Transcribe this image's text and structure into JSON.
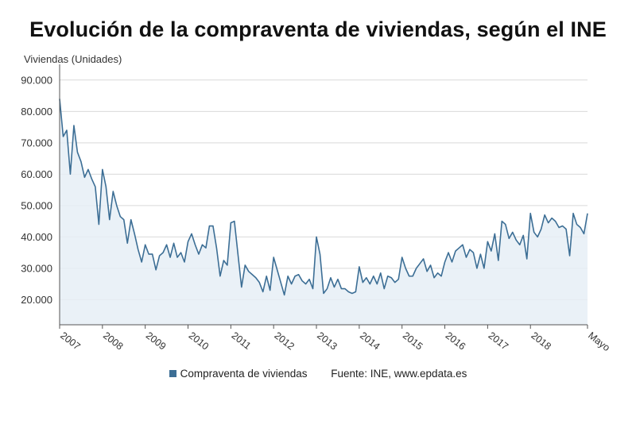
{
  "chart_data": {
    "type": "area",
    "title": "Evolución de la compraventa de viviendas, según el INE",
    "ylabel": "Viviendas (Unidades)",
    "xlabel": "",
    "ylim": [
      12000,
      94000
    ],
    "yticks": [
      20000,
      30000,
      40000,
      50000,
      60000,
      70000,
      80000,
      90000
    ],
    "ytick_labels": [
      "20.000",
      "30.000",
      "40.000",
      "50.000",
      "60.000",
      "70.000",
      "80.000",
      "90.000"
    ],
    "xtick_labels": [
      "2007",
      "2008",
      "2009",
      "2010",
      "2011",
      "2012",
      "2013",
      "2014",
      "2015",
      "2016",
      "2017",
      "2018",
      "Mayo"
    ],
    "x_start": "2007-01",
    "x_end": "2019-05",
    "grid": true,
    "legend_position": "bottom",
    "series": [
      {
        "name": "Compraventa de viviendas",
        "color": "#3c6e95",
        "values": [
          84000,
          72000,
          74000,
          60000,
          75500,
          67000,
          64000,
          59000,
          61500,
          58500,
          56000,
          44000,
          61500,
          56000,
          45500,
          54500,
          50000,
          46500,
          45500,
          38000,
          45500,
          41000,
          36000,
          32000,
          37500,
          34500,
          34500,
          29500,
          34000,
          35000,
          37500,
          33500,
          38000,
          33500,
          35000,
          32000,
          38500,
          41000,
          37500,
          34500,
          37500,
          36500,
          43500,
          43500,
          36500,
          27500,
          32500,
          31000,
          44500,
          45000,
          34500,
          24000,
          31000,
          29000,
          28000,
          27000,
          25500,
          22500,
          27500,
          23000,
          33500,
          29500,
          25500,
          21500,
          27500,
          25000,
          27500,
          28000,
          26000,
          25000,
          26500,
          23500,
          40000,
          34500,
          22000,
          23500,
          27000,
          24000,
          26500,
          23500,
          23500,
          22500,
          22000,
          22500,
          30500,
          25500,
          27000,
          25000,
          27500,
          25000,
          28500,
          23500,
          27500,
          27000,
          25500,
          26500,
          33500,
          30000,
          27500,
          27500,
          30000,
          31500,
          33000,
          29000,
          31000,
          27000,
          28500,
          27500,
          32000,
          35000,
          32000,
          35500,
          36500,
          37500,
          33500,
          36000,
          35000,
          30000,
          34500,
          30000,
          38500,
          35500,
          41000,
          32500,
          45000,
          44000,
          39500,
          41500,
          39000,
          37500,
          40500,
          33000,
          47500,
          41500,
          40000,
          42500,
          47000,
          44500,
          46000,
          45000,
          43000,
          43500,
          42500,
          34000,
          47500,
          44000,
          43000,
          41000,
          47500
        ]
      }
    ],
    "legend_label": "Compraventa de viviendas",
    "source_text": "Fuente: INE, www.epdata.es"
  }
}
